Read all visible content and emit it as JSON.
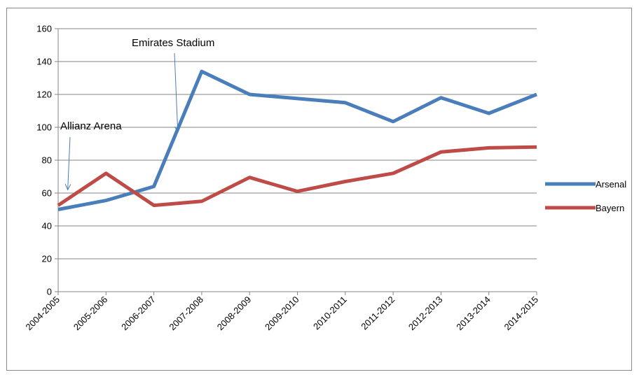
{
  "chart_data": {
    "type": "line",
    "categories": [
      "2004-2005",
      "2005-2006",
      "2006-2007",
      "2007-2008",
      "2008-2009",
      "2009-2010",
      "2010-2011",
      "2011-2012",
      "2012-2013",
      "2013-2014",
      "2014-2015"
    ],
    "series": [
      {
        "name": "Arsenal",
        "color": "#4a7ebb",
        "values": [
          50,
          55.5,
          64,
          134,
          120,
          117.5,
          115,
          103.5,
          118,
          108.5,
          120
        ]
      },
      {
        "name": "Bayern",
        "color": "#be4b48",
        "values": [
          52.5,
          72,
          52.5,
          55,
          69.5,
          61,
          67,
          72,
          85,
          87.5,
          88
        ]
      }
    ],
    "ylim": [
      0,
      160
    ],
    "yticks": [
      0,
      20,
      40,
      60,
      80,
      100,
      120,
      140,
      160
    ],
    "ytick_labels": [
      "0",
      "20",
      "40",
      "60",
      "80",
      "100",
      "120",
      "140",
      "160"
    ],
    "grid": true,
    "legend_position": "right",
    "annotations": [
      {
        "text": "Allianz Arena",
        "x_index": 0.2,
        "y_value": 62
      },
      {
        "text": "Emirates Stadium",
        "x_index": 2.5,
        "y_value": 97
      }
    ]
  }
}
